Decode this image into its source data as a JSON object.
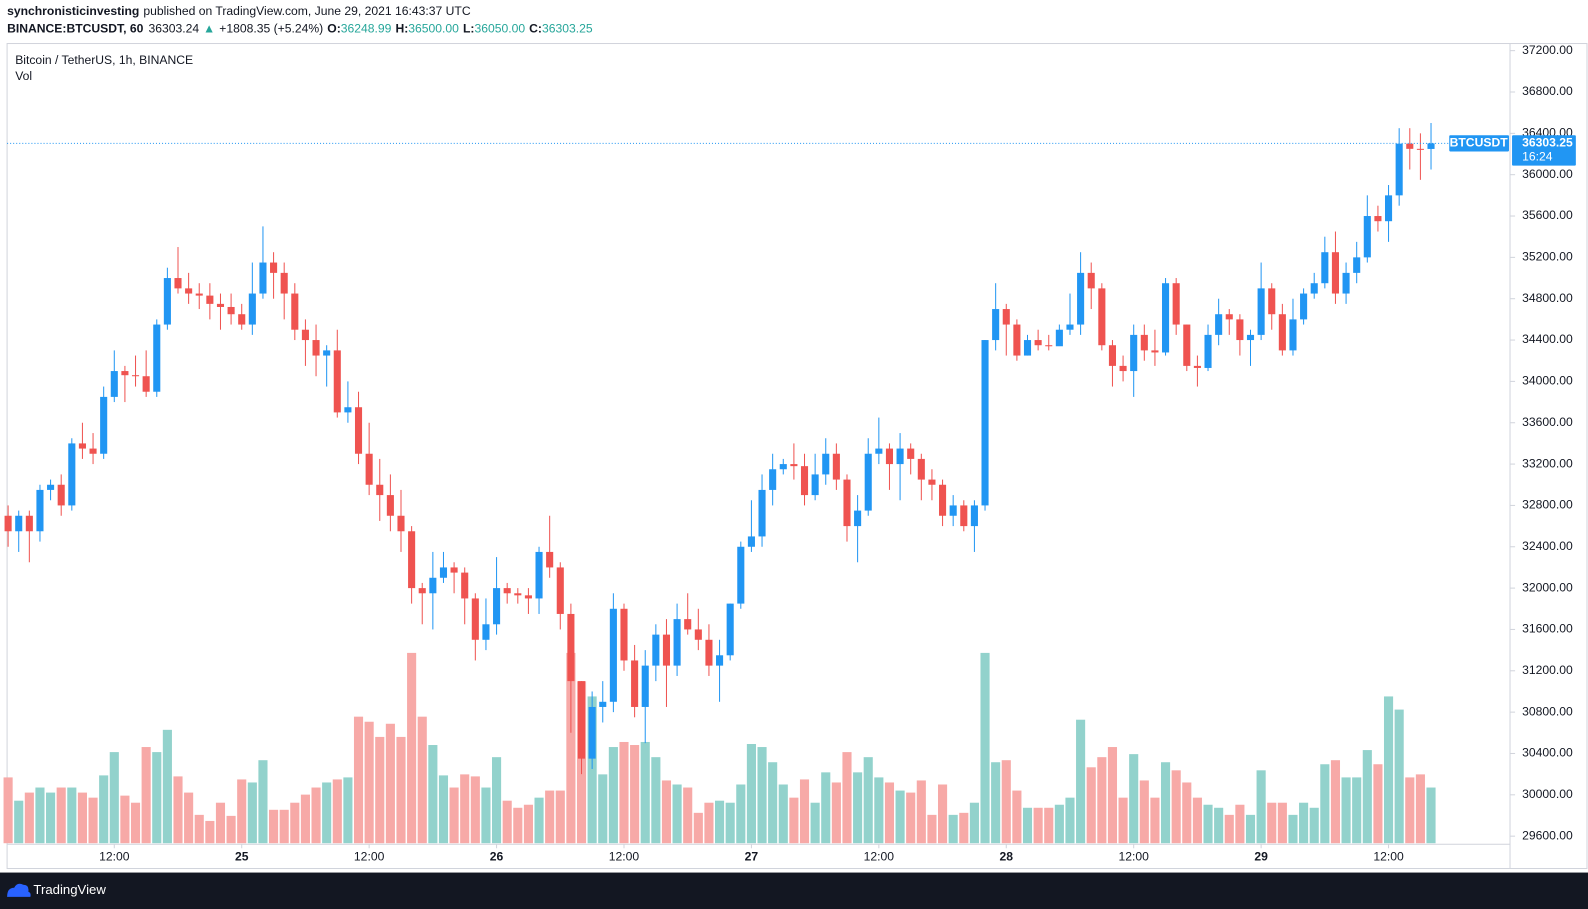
{
  "chart_data": {
    "type": "candlestick",
    "header": {
      "author": "synchronisticinvesting",
      "published": "published on TradingView.com, June 29, 2021 16:43:37 UTC",
      "symbol": "BINANCE:BTCUSDT, 60",
      "last": "36303.24",
      "arrow": "▲",
      "change": "+1808.35 (+5.24%)",
      "o_label": "O:",
      "o": "36248.99",
      "h_label": "H:",
      "h": "36500.00",
      "l_label": "L:",
      "l": "36050.00",
      "c_label": "C:",
      "c": "36303.25"
    },
    "title": "Bitcoin / TetherUS, 1h, BINANCE",
    "volume_label": "Vol",
    "brand": "TradingView",
    "up_color": "#2196f3",
    "down_color": "#ef5350",
    "volume_up_color": "#92d2cc",
    "volume_down_color": "#f7a9a7",
    "grid": false,
    "open": [
      32700,
      32550,
      32700,
      32550,
      32950,
      33000,
      32800,
      33400,
      33350,
      33300,
      33850,
      34100,
      34060,
      34050,
      33900,
      34550,
      35000,
      34900,
      34850,
      34830,
      34750,
      34720,
      34650,
      34550,
      34850,
      35150,
      35050,
      34850,
      34500,
      34400,
      34250,
      34300,
      33700,
      33750,
      33300,
      33000,
      32900,
      32700,
      32550,
      32000,
      31950,
      32100,
      32200,
      32150,
      31900,
      31500,
      31650,
      32000,
      31950,
      31930,
      31900,
      32350,
      32200,
      31750,
      31100,
      30350,
      30850,
      30900,
      31800,
      31300,
      30850,
      31250,
      31550,
      31250,
      31700,
      31600,
      31500,
      31250,
      31350,
      31850,
      32400,
      32500,
      32950,
      33150,
      33200,
      33180,
      32900,
      33100,
      33300,
      33050,
      32600,
      32750,
      33300,
      33350,
      33200,
      33350,
      33250,
      33050,
      33000,
      32700,
      32800,
      32600,
      32800,
      34400,
      34700,
      34550,
      34250,
      34400,
      34350,
      34340,
      34500,
      34550,
      35050,
      34900,
      34350,
      34150,
      34100,
      34450,
      34300,
      34280,
      34950,
      34550,
      34150,
      34130,
      34450,
      34650,
      34600,
      34400,
      34450,
      34900,
      34650,
      34300,
      34600,
      34850,
      34950,
      35250,
      34850,
      35050,
      35200,
      35600,
      35550,
      35800,
      36300,
      36250,
      36248.99
    ],
    "high": [
      32800,
      32750,
      32750,
      33000,
      33050,
      33100,
      33450,
      33600,
      33500,
      33950,
      34300,
      34150,
      34250,
      34300,
      34600,
      35100,
      35300,
      35050,
      34950,
      34950,
      34850,
      34850,
      34750,
      35150,
      35500,
      35250,
      35150,
      34950,
      34600,
      34550,
      34350,
      34500,
      34000,
      33900,
      33600,
      33250,
      33100,
      32950,
      32600,
      32050,
      32350,
      32350,
      32250,
      32200,
      31950,
      31900,
      32300,
      32050,
      32000,
      32000,
      32400,
      32700,
      32250,
      31850,
      31100,
      31000,
      31100,
      31950,
      31850,
      31450,
      31400,
      31650,
      31700,
      31850,
      31950,
      31800,
      31650,
      31500,
      31850,
      32450,
      32850,
      33100,
      33300,
      33250,
      33400,
      33300,
      33300,
      33450,
      33400,
      33100,
      32900,
      33450,
      33650,
      33400,
      33500,
      33400,
      33300,
      33150,
      33050,
      32900,
      32850,
      32850,
      34400,
      34950,
      34750,
      34600,
      34450,
      34500,
      34450,
      34550,
      34850,
      35250,
      35150,
      34950,
      34400,
      34250,
      34550,
      34550,
      34500,
      35000,
      35000,
      34550,
      34250,
      34550,
      34800,
      34700,
      34650,
      34500,
      35150,
      34950,
      34750,
      34800,
      34900,
      35050,
      35400,
      35450,
      35150,
      35350,
      35800,
      35700,
      35900,
      36450,
      36450,
      36400,
      36500
    ],
    "low": [
      32400,
      32350,
      32250,
      32450,
      32850,
      32700,
      32750,
      33250,
      33200,
      33250,
      33800,
      33800,
      33950,
      33850,
      33850,
      34500,
      34850,
      34750,
      34700,
      34600,
      34500,
      34550,
      34500,
      34450,
      34800,
      34800,
      34600,
      34400,
      34150,
      34050,
      33950,
      33650,
      33600,
      33200,
      32900,
      32650,
      32550,
      32350,
      31850,
      31650,
      31600,
      32050,
      31950,
      31650,
      31300,
      31400,
      31550,
      31850,
      31850,
      31750,
      31750,
      32100,
      31600,
      30600,
      30200,
      30250,
      30700,
      30800,
      31200,
      30750,
      30500,
      31100,
      30850,
      31150,
      31550,
      31400,
      31150,
      30900,
      31300,
      31800,
      32350,
      32400,
      32800,
      33100,
      33050,
      32800,
      32850,
      33000,
      32950,
      32450,
      32250,
      32700,
      33200,
      32950,
      32850,
      33100,
      32850,
      32850,
      32600,
      32600,
      32550,
      32350,
      32750,
      34300,
      34250,
      34200,
      34250,
      34300,
      34300,
      34400,
      34450,
      34450,
      34700,
      34300,
      33950,
      34000,
      33850,
      34200,
      34150,
      34250,
      34450,
      34100,
      33950,
      34100,
      34350,
      34450,
      34250,
      34150,
      34400,
      34500,
      34250,
      34250,
      34550,
      34800,
      34900,
      34750,
      34750,
      34950,
      35150,
      35450,
      35350,
      35700,
      36050,
      35950,
      36050
    ],
    "close": [
      32550,
      32700,
      32550,
      32950,
      33000,
      32800,
      33400,
      33350,
      33300,
      33850,
      34100,
      34060,
      34050,
      33900,
      34550,
      35000,
      34900,
      34850,
      34830,
      34750,
      34720,
      34650,
      34550,
      34850,
      35150,
      35050,
      34850,
      34500,
      34400,
      34250,
      34300,
      33700,
      33750,
      33300,
      33000,
      32900,
      32700,
      32550,
      32000,
      31950,
      32100,
      32200,
      32150,
      31900,
      31500,
      31650,
      32000,
      31950,
      31930,
      31900,
      32350,
      32200,
      31750,
      31100,
      30350,
      30850,
      30900,
      31800,
      31300,
      30850,
      31250,
      31550,
      31250,
      31700,
      31600,
      31500,
      31250,
      31350,
      31850,
      32400,
      32500,
      32950,
      33150,
      33200,
      33180,
      32900,
      33100,
      33300,
      33050,
      32600,
      32750,
      33300,
      33350,
      33200,
      33350,
      33250,
      33050,
      33000,
      32700,
      32800,
      32600,
      32800,
      34400,
      34700,
      34550,
      34250,
      34400,
      34350,
      34340,
      34500,
      34550,
      35050,
      34900,
      34350,
      34150,
      34100,
      34450,
      34300,
      34280,
      34950,
      34550,
      34150,
      34130,
      34450,
      34650,
      34600,
      34400,
      34450,
      34900,
      34650,
      34300,
      34600,
      34850,
      34950,
      35250,
      34850,
      35050,
      35200,
      35600,
      35550,
      35800,
      36300,
      36250,
      36248.99,
      36303.25
    ],
    "volume": [
      1300,
      840,
      1000,
      1100,
      1000,
      1100,
      1100,
      1000,
      900,
      1340,
      1800,
      940,
      800,
      1900,
      1800,
      2240,
      1320,
      1000,
      560,
      440,
      800,
      540,
      1260,
      1200,
      1640,
      660,
      660,
      800,
      960,
      1100,
      1200,
      1260,
      1300,
      2500,
      2400,
      2100,
      2360,
      2100,
      3760,
      2500,
      1940,
      1340,
      1100,
      1360,
      1320,
      1100,
      1700,
      840,
      700,
      760,
      900,
      1040,
      1040,
      3760,
      3200,
      2900,
      1360,
      1900,
      2000,
      1940,
      2000,
      1700,
      1240,
      1160,
      1100,
      600,
      800,
      840,
      800,
      1160,
      1960,
      1900,
      1600,
      1160,
      900,
      1260,
      800,
      1400,
      1200,
      1800,
      1400,
      1700,
      1300,
      1200,
      1040,
      1000,
      1240,
      560,
      1160,
      560,
      600,
      800,
      3760,
      1600,
      1640,
      1040,
      700,
      700,
      700,
      760,
      900,
      2440,
      1500,
      1700,
      1900,
      900,
      1760,
      1240,
      900,
      1600,
      1440,
      1200,
      900,
      760,
      700,
      560,
      760,
      560,
      1440,
      800,
      800,
      560,
      800,
      700,
      1560,
      1640,
      1300,
      1300,
      1840,
      1560,
      2900,
      2640,
      1300,
      1360,
      1100
    ],
    "xticks": [
      {
        "value": 10,
        "label": "12:00"
      },
      {
        "value": 22,
        "label": "25"
      },
      {
        "value": 34,
        "label": "12:00"
      },
      {
        "value": 46,
        "label": "26"
      },
      {
        "value": 58,
        "label": "12:00"
      },
      {
        "value": 70,
        "label": "27"
      },
      {
        "value": 82,
        "label": "12:00"
      },
      {
        "value": 94,
        "label": "28"
      },
      {
        "value": 106,
        "label": "12:00"
      },
      {
        "value": 118,
        "label": "29"
      },
      {
        "value": 130,
        "label": "12:00"
      }
    ],
    "ylim": [
      29287,
      37269
    ],
    "yticks": [
      {
        "value": 29600,
        "label": "29600.00"
      },
      {
        "value": 30000,
        "label": "30000.00"
      },
      {
        "value": 30400,
        "label": "30400.00"
      },
      {
        "value": 30800,
        "label": "30800.00"
      },
      {
        "value": 31200,
        "label": "31200.00"
      },
      {
        "value": 31600,
        "label": "31600.00"
      },
      {
        "value": 32000,
        "label": "32000.00"
      },
      {
        "value": 32400,
        "label": "32400.00"
      },
      {
        "value": 32800,
        "label": "32800.00"
      },
      {
        "value": 33200,
        "label": "33200.00"
      },
      {
        "value": 33600,
        "label": "33600.00"
      },
      {
        "value": 34000,
        "label": "34000.00"
      },
      {
        "value": 34400,
        "label": "34400.00"
      },
      {
        "value": 34800,
        "label": "34800.00"
      },
      {
        "value": 35200,
        "label": "35200.00"
      },
      {
        "value": 35600,
        "label": "35600.00"
      },
      {
        "value": 36000,
        "label": "36000.00"
      },
      {
        "value": 36400,
        "label": "36400.00"
      },
      {
        "value": 36800,
        "label": "36800.00"
      },
      {
        "value": 37200,
        "label": "37200.00"
      }
    ],
    "price_line": {
      "value": 36303.25,
      "label": "BTCUSDT",
      "countdown": "16:24"
    }
  }
}
